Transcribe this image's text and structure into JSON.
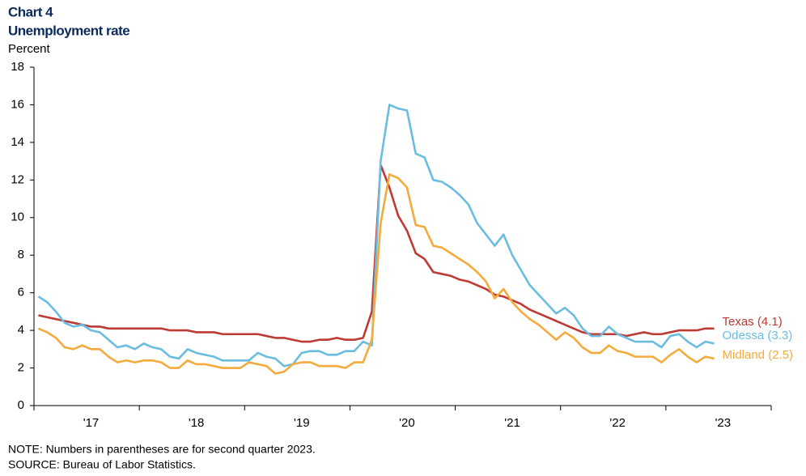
{
  "chart_data": {
    "type": "line",
    "title": "Chart 4",
    "subtitle": "Unemployment rate",
    "y_label": "Percent",
    "note": "NOTE: Numbers in parentheses are for second quarter 2023.",
    "source": "SOURCE: Bureau of Labor Statistics.",
    "categories": [
      null,
      null,
      null,
      null,
      null,
      null,
      "'17",
      null,
      null,
      null,
      null,
      null,
      null,
      null,
      null,
      null,
      null,
      null,
      "'18",
      null,
      null,
      null,
      null,
      null,
      null,
      null,
      null,
      null,
      null,
      null,
      "'19",
      null,
      null,
      null,
      null,
      null,
      null,
      null,
      null,
      null,
      null,
      null,
      "'20",
      null,
      null,
      null,
      null,
      null,
      null,
      null,
      null,
      null,
      null,
      null,
      "'21",
      null,
      null,
      null,
      null,
      null,
      null,
      null,
      null,
      null,
      null,
      null,
      "'22",
      null,
      null,
      null,
      null,
      null,
      null,
      null,
      null,
      null,
      null,
      null,
      "'23",
      null,
      null,
      null,
      null,
      null
    ],
    "ylim": [
      0,
      18
    ],
    "yticks": [
      0,
      2,
      4,
      6,
      8,
      10,
      12,
      14,
      16,
      18
    ],
    "grid": false,
    "series": [
      {
        "name": "Texas (4.1)",
        "color": "#be3a34",
        "values": [
          4.8,
          4.7,
          4.6,
          4.5,
          4.4,
          4.3,
          4.2,
          4.2,
          4.1,
          4.1,
          4.1,
          4.1,
          4.1,
          4.1,
          4.1,
          4.0,
          4.0,
          4.0,
          3.9,
          3.9,
          3.9,
          3.8,
          3.8,
          3.8,
          3.8,
          3.8,
          3.7,
          3.6,
          3.6,
          3.5,
          3.4,
          3.4,
          3.5,
          3.5,
          3.6,
          3.5,
          3.5,
          3.6,
          5.0,
          12.8,
          11.6,
          10.1,
          9.3,
          8.1,
          7.8,
          7.1,
          7.0,
          6.9,
          6.7,
          6.6,
          6.4,
          6.2,
          5.9,
          5.8,
          5.6,
          5.4,
          5.1,
          4.9,
          4.7,
          4.5,
          4.3,
          4.1,
          3.9,
          3.8,
          3.8,
          3.8,
          3.8,
          3.7,
          3.8,
          3.9,
          3.8,
          3.8,
          3.9,
          4.0,
          4.0,
          4.0,
          4.1,
          4.1,
          null,
          null,
          null,
          null,
          null,
          null
        ]
      },
      {
        "name": "Odessa (3.3)",
        "color": "#6bbde0",
        "values": [
          5.8,
          5.5,
          5.0,
          4.4,
          4.2,
          4.3,
          4.0,
          3.9,
          3.5,
          3.1,
          3.2,
          3.0,
          3.3,
          3.1,
          3.0,
          2.6,
          2.5,
          3.0,
          2.8,
          2.7,
          2.6,
          2.4,
          2.4,
          2.4,
          2.4,
          2.8,
          2.6,
          2.5,
          2.1,
          2.2,
          2.8,
          2.9,
          2.9,
          2.7,
          2.7,
          2.9,
          2.9,
          3.4,
          3.2,
          13.0,
          16.0,
          15.8,
          15.7,
          13.4,
          13.2,
          12.0,
          11.9,
          11.6,
          11.2,
          10.7,
          9.7,
          9.1,
          8.5,
          9.1,
          8.0,
          7.2,
          6.4,
          5.9,
          5.4,
          4.9,
          5.2,
          4.8,
          4.1,
          3.7,
          3.7,
          4.2,
          3.8,
          3.6,
          3.4,
          3.4,
          3.4,
          3.1,
          3.7,
          3.8,
          3.4,
          3.1,
          3.4,
          3.3,
          null,
          null,
          null,
          null,
          null,
          null
        ]
      },
      {
        "name": "Midland (2.5)",
        "color": "#f5aa3c",
        "values": [
          4.1,
          3.9,
          3.6,
          3.1,
          3.0,
          3.2,
          3.0,
          3.0,
          2.6,
          2.3,
          2.4,
          2.3,
          2.4,
          2.4,
          2.3,
          2.0,
          2.0,
          2.4,
          2.2,
          2.2,
          2.1,
          2.0,
          2.0,
          2.0,
          2.3,
          2.2,
          2.1,
          1.7,
          1.8,
          2.2,
          2.3,
          2.3,
          2.1,
          2.1,
          2.1,
          2.0,
          2.3,
          2.3,
          3.5,
          9.7,
          12.3,
          12.1,
          11.6,
          9.6,
          9.5,
          8.5,
          8.4,
          8.1,
          7.8,
          7.5,
          7.1,
          6.6,
          5.7,
          6.2,
          5.5,
          5.0,
          4.6,
          4.3,
          3.9,
          3.5,
          3.9,
          3.6,
          3.1,
          2.8,
          2.8,
          3.2,
          2.9,
          2.8,
          2.6,
          2.6,
          2.6,
          2.3,
          2.7,
          3.0,
          2.6,
          2.3,
          2.6,
          2.5,
          null,
          null,
          null,
          null,
          null,
          null
        ]
      }
    ]
  }
}
